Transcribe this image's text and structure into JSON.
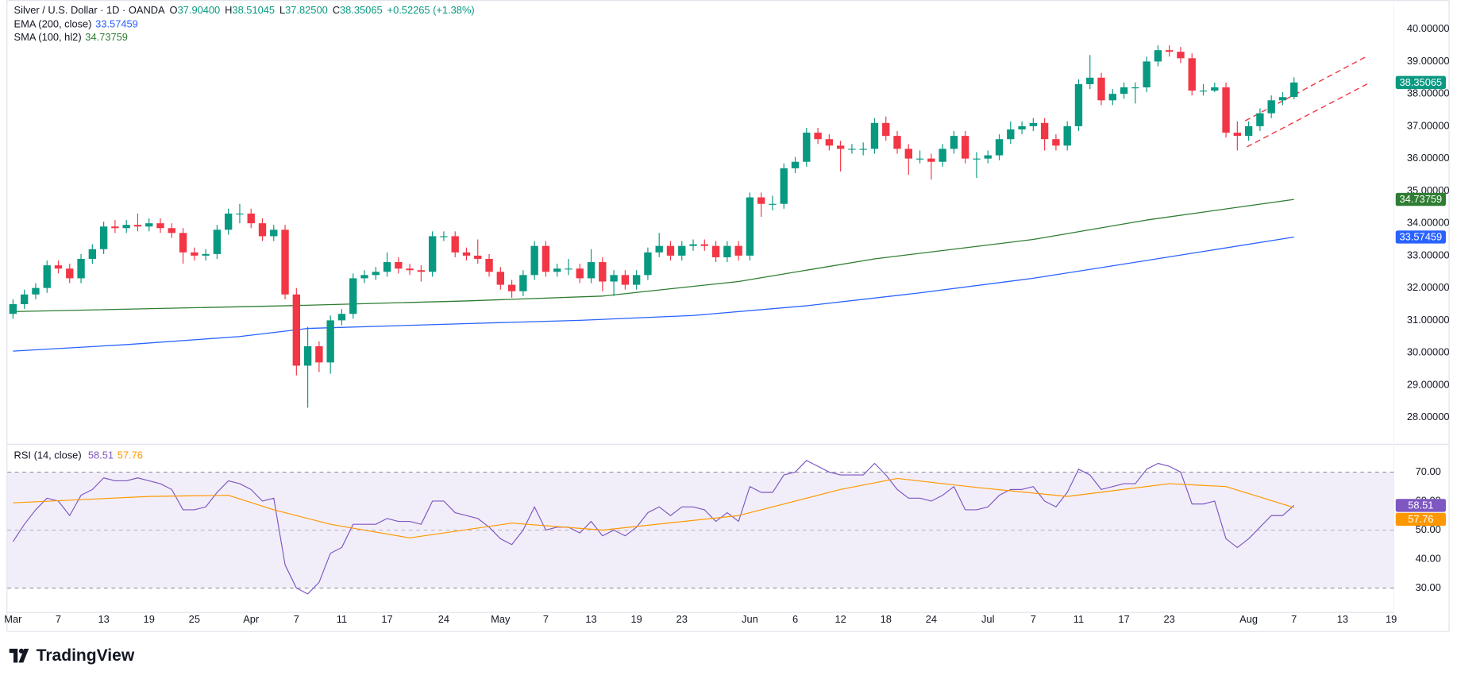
{
  "branding": "TradingView",
  "chart_data": [
    {
      "type": "candlestick",
      "title": "Silver / U.S. Dollar · 1D · OANDA",
      "ohlc_keys": [
        "O",
        "H",
        "L",
        "C"
      ],
      "ohlc_labels": [
        "37.90400",
        "38.51045",
        "37.82500",
        "38.35065"
      ],
      "change": "+0.52265 (+1.38%)",
      "up_color": "#089981",
      "down_color": "#f23645",
      "grid": false,
      "x": [
        "Mar 3",
        "Mar 4",
        "Mar 5",
        "Mar 6",
        "Mar 7",
        "Mar 10",
        "Mar 11",
        "Mar 12",
        "Mar 13",
        "Mar 14",
        "Mar 17",
        "Mar 18",
        "Mar 19",
        "Mar 20",
        "Mar 21",
        "Mar 24",
        "Mar 25",
        "Mar 26",
        "Mar 27",
        "Mar 28",
        "Mar 31",
        "Apr 1",
        "Apr 2",
        "Apr 3",
        "Apr 4",
        "Apr 7",
        "Apr 8",
        "Apr 9",
        "Apr 10",
        "Apr 11",
        "Apr 14",
        "Apr 15",
        "Apr 16",
        "Apr 17",
        "Apr 18",
        "Apr 21",
        "Apr 22",
        "Apr 23",
        "Apr 24",
        "Apr 25",
        "Apr 28",
        "Apr 29",
        "Apr 30",
        "May 1",
        "May 2",
        "May 5",
        "May 6",
        "May 7",
        "May 8",
        "May 9",
        "May 12",
        "May 13",
        "May 14",
        "May 15",
        "May 16",
        "May 19",
        "May 20",
        "May 21",
        "May 22",
        "May 23",
        "May 26",
        "May 27",
        "May 28",
        "May 29",
        "May 30",
        "Jun 2",
        "Jun 3",
        "Jun 4",
        "Jun 5",
        "Jun 6",
        "Jun 9",
        "Jun 10",
        "Jun 11",
        "Jun 12",
        "Jun 13",
        "Jun 16",
        "Jun 17",
        "Jun 18",
        "Jun 19",
        "Jun 20",
        "Jun 23",
        "Jun 24",
        "Jun 25",
        "Jun 26",
        "Jun 27",
        "Jun 30",
        "Jul 1",
        "Jul 2",
        "Jul 3",
        "Jul 4",
        "Jul 7",
        "Jul 8",
        "Jul 9",
        "Jul 10",
        "Jul 11",
        "Jul 14",
        "Jul 15",
        "Jul 16",
        "Jul 17",
        "Jul 18",
        "Jul 21",
        "Jul 22",
        "Jul 23",
        "Jul 24",
        "Jul 25",
        "Jul 28",
        "Jul 29",
        "Jul 30",
        "Jul 31",
        "Aug 1",
        "Aug 4",
        "Aug 5",
        "Aug 6",
        "Aug 7"
      ],
      "open": [
        31.2,
        31.5,
        31.8,
        32.0,
        32.7,
        32.6,
        32.3,
        32.9,
        33.2,
        33.9,
        33.85,
        33.95,
        33.9,
        34.0,
        33.85,
        33.7,
        33.1,
        33.0,
        33.05,
        33.8,
        34.3,
        34.3,
        34.0,
        33.6,
        33.8,
        31.8,
        29.6,
        30.2,
        29.7,
        31.0,
        31.2,
        32.3,
        32.4,
        32.5,
        32.8,
        32.6,
        32.55,
        32.5,
        33.6,
        33.6,
        33.1,
        33.0,
        32.9,
        32.5,
        32.1,
        31.9,
        32.4,
        33.3,
        32.5,
        32.6,
        32.6,
        32.3,
        32.8,
        32.2,
        32.4,
        32.1,
        32.4,
        33.1,
        33.3,
        33.0,
        33.3,
        33.35,
        33.3,
        32.95,
        33.3,
        33.0,
        34.8,
        34.6,
        34.6,
        35.7,
        35.9,
        36.8,
        36.6,
        36.4,
        36.3,
        36.3,
        36.3,
        37.1,
        36.7,
        36.3,
        36.0,
        36.0,
        35.9,
        36.3,
        36.7,
        36.0,
        36.0,
        36.1,
        36.6,
        36.9,
        37.0,
        37.1,
        36.6,
        36.4,
        37.0,
        38.3,
        38.5,
        37.8,
        38.0,
        38.2,
        38.2,
        39.0,
        39.35,
        39.3,
        39.1,
        38.1,
        38.1,
        38.2,
        36.8,
        36.7,
        37.0,
        37.4,
        37.8,
        37.904
      ],
      "high": [
        31.65,
        31.95,
        32.15,
        32.85,
        32.85,
        32.75,
        33.05,
        33.35,
        34.05,
        34.1,
        34.1,
        34.3,
        34.15,
        34.15,
        34.0,
        33.85,
        33.25,
        33.2,
        33.95,
        34.45,
        34.6,
        34.45,
        34.15,
        33.95,
        33.95,
        32.0,
        30.8,
        30.35,
        31.15,
        31.35,
        32.45,
        32.55,
        32.65,
        33.1,
        32.95,
        32.75,
        32.7,
        33.75,
        33.75,
        33.75,
        33.25,
        33.5,
        33.05,
        32.65,
        32.25,
        32.55,
        33.45,
        33.45,
        32.75,
        32.9,
        32.75,
        33.2,
        32.95,
        32.55,
        32.55,
        32.55,
        33.25,
        33.7,
        33.45,
        33.45,
        33.5,
        33.5,
        33.45,
        33.45,
        33.45,
        34.95,
        34.95,
        34.85,
        35.85,
        36.05,
        36.95,
        36.95,
        36.75,
        36.55,
        36.45,
        36.5,
        37.25,
        37.3,
        36.85,
        36.45,
        36.25,
        36.15,
        36.45,
        36.85,
        36.85,
        36.2,
        36.25,
        36.75,
        37.15,
        37.15,
        37.25,
        37.25,
        36.75,
        37.15,
        38.45,
        39.2,
        38.65,
        38.15,
        38.35,
        38.35,
        39.15,
        39.5,
        39.5,
        39.45,
        39.25,
        38.3,
        38.35,
        38.35,
        37.15,
        37.15,
        37.55,
        37.95,
        38.05,
        38.51045
      ],
      "low": [
        31.05,
        31.35,
        31.65,
        31.85,
        32.45,
        32.15,
        32.15,
        32.75,
        33.05,
        33.7,
        33.7,
        33.75,
        33.75,
        33.7,
        33.55,
        32.75,
        32.85,
        32.85,
        32.9,
        33.65,
        34.0,
        33.85,
        33.45,
        33.45,
        31.65,
        29.3,
        28.3,
        29.4,
        29.35,
        30.85,
        31.05,
        32.15,
        32.25,
        32.35,
        32.45,
        32.4,
        32.2,
        32.35,
        33.45,
        32.95,
        32.85,
        32.75,
        32.35,
        31.95,
        31.7,
        31.75,
        32.25,
        32.35,
        32.35,
        32.4,
        32.15,
        32.15,
        31.9,
        31.75,
        31.95,
        31.95,
        32.25,
        32.95,
        32.85,
        32.85,
        33.15,
        33.15,
        32.8,
        32.8,
        32.85,
        32.85,
        34.2,
        34.4,
        34.45,
        35.55,
        35.75,
        36.45,
        36.25,
        35.6,
        36.15,
        36.1,
        36.15,
        36.55,
        36.15,
        35.5,
        35.85,
        35.35,
        35.75,
        36.15,
        35.85,
        35.4,
        35.85,
        35.95,
        36.45,
        36.75,
        36.85,
        36.25,
        36.25,
        36.25,
        36.85,
        38.15,
        37.65,
        37.65,
        37.85,
        37.7,
        38.05,
        38.85,
        39.15,
        38.95,
        37.95,
        37.95,
        38.05,
        36.65,
        36.25,
        36.55,
        36.85,
        37.25,
        37.65,
        37.825
      ],
      "close": [
        31.5,
        31.8,
        32.0,
        32.7,
        32.6,
        32.3,
        32.9,
        33.2,
        33.9,
        33.85,
        33.95,
        33.9,
        34.0,
        33.85,
        33.7,
        33.1,
        33.0,
        33.05,
        33.8,
        34.3,
        34.3,
        34.0,
        33.6,
        33.8,
        31.8,
        29.6,
        30.2,
        29.7,
        31.0,
        31.2,
        32.3,
        32.4,
        32.5,
        32.8,
        32.6,
        32.55,
        32.5,
        33.6,
        33.6,
        33.1,
        33.0,
        32.9,
        32.5,
        32.1,
        31.9,
        32.4,
        33.3,
        32.5,
        32.6,
        32.6,
        32.3,
        32.8,
        32.2,
        32.4,
        32.1,
        32.4,
        33.1,
        33.3,
        33.0,
        33.3,
        33.35,
        33.3,
        32.95,
        33.3,
        33.0,
        34.8,
        34.6,
        34.6,
        35.7,
        35.9,
        36.8,
        36.6,
        36.4,
        36.3,
        36.3,
        36.3,
        37.1,
        36.7,
        36.3,
        36.0,
        36.0,
        35.9,
        36.3,
        36.7,
        36.0,
        36.0,
        36.1,
        36.6,
        36.9,
        37.0,
        37.1,
        36.6,
        36.4,
        37.0,
        38.3,
        38.5,
        37.8,
        38.0,
        38.2,
        38.2,
        39.0,
        39.35,
        39.3,
        39.1,
        38.1,
        38.1,
        38.2,
        36.8,
        36.7,
        37.0,
        37.4,
        37.8,
        37.9,
        38.35065
      ],
      "series": [
        {
          "name": "EMA (200, close)",
          "color": "#2962ff",
          "value_label": "33.57459",
          "x": [
            "Mar 3",
            "Mar 17",
            "Mar 31",
            "Apr 8",
            "Apr 28",
            "May 12",
            "May 26",
            "Jun 9",
            "Jun 23",
            "Jul 7",
            "Jul 21",
            "Aug 7"
          ],
          "values": [
            30.05,
            30.25,
            30.5,
            30.75,
            30.9,
            31.0,
            31.15,
            31.45,
            31.85,
            32.3,
            32.85,
            33.57459
          ]
        },
        {
          "name": "SMA (100, hl2)",
          "color": "#2e7d32",
          "value_label": "34.73759",
          "x": [
            "Mar 3",
            "Apr 4",
            "Apr 28",
            "May 14",
            "May 30",
            "Jun 17",
            "Jul 7",
            "Jul 21",
            "Aug 7"
          ],
          "values": [
            31.27,
            31.45,
            31.6,
            31.75,
            32.2,
            32.9,
            33.5,
            34.1,
            34.73759
          ]
        }
      ],
      "ylim": [
        27.2,
        40.9
      ],
      "yticks": [
        {
          "value": 28,
          "label": "28.00000"
        },
        {
          "value": 29,
          "label": "29.00000"
        },
        {
          "value": 30,
          "label": "30.00000"
        },
        {
          "value": 31,
          "label": "31.00000"
        },
        {
          "value": 32,
          "label": "32.00000"
        },
        {
          "value": 33,
          "label": "33.00000"
        },
        {
          "value": 34,
          "label": "34.00000"
        },
        {
          "value": 35,
          "label": "35.00000"
        },
        {
          "value": 36,
          "label": "36.00000"
        },
        {
          "value": 37,
          "label": "37.00000"
        },
        {
          "value": 38,
          "label": "38.00000"
        },
        {
          "value": 39,
          "label": "39.00000"
        },
        {
          "value": 40,
          "label": "40.00000"
        }
      ],
      "xticks": [
        {
          "value": "Mar 3",
          "label": "Mar"
        },
        {
          "value": "Mar 7",
          "label": "7"
        },
        {
          "value": "Mar 13",
          "label": "13"
        },
        {
          "value": "Mar 19",
          "label": "19"
        },
        {
          "value": "Mar 25",
          "label": "25"
        },
        {
          "value": "Apr 1",
          "label": "Apr"
        },
        {
          "value": "Apr 7",
          "label": "7"
        },
        {
          "value": "Apr 11",
          "label": "11"
        },
        {
          "value": "Apr 17",
          "label": "17"
        },
        {
          "value": "Apr 24",
          "label": "24"
        },
        {
          "value": "May 1",
          "label": "May"
        },
        {
          "value": "May 7",
          "label": "7"
        },
        {
          "value": "May 13",
          "label": "13"
        },
        {
          "value": "May 19",
          "label": "19"
        },
        {
          "value": "May 23",
          "label": "23"
        },
        {
          "value": "Jun 2",
          "label": "Jun"
        },
        {
          "value": "Jun 6",
          "label": "6"
        },
        {
          "value": "Jun 12",
          "label": "12"
        },
        {
          "value": "Jun 18",
          "label": "18"
        },
        {
          "value": "Jun 24",
          "label": "24"
        },
        {
          "value": "Jul 1",
          "label": "Jul"
        },
        {
          "value": "Jul 7",
          "label": "7"
        },
        {
          "value": "Jul 11",
          "label": "11"
        },
        {
          "value": "Jul 17",
          "label": "17"
        },
        {
          "value": "Jul 23",
          "label": "23"
        },
        {
          "value": "Aug 1",
          "label": "Aug"
        },
        {
          "value": "Aug 7",
          "label": "7"
        },
        {
          "value": "Aug 13",
          "label": "13"
        },
        {
          "value": "Aug 19",
          "label": "19"
        }
      ]
    },
    {
      "type": "line",
      "title": "RSI (14, close)",
      "band": [
        30,
        70
      ],
      "band_color": "#7e57c2",
      "midline": 50,
      "series": [
        {
          "color": "#7e57c2",
          "value_label": "58.51",
          "values": [
            46,
            52,
            57,
            61,
            60,
            55,
            62,
            64,
            68,
            67,
            67,
            68,
            67,
            66,
            64,
            57,
            57,
            58,
            63,
            67,
            66,
            64,
            60,
            61,
            38,
            30,
            28,
            32,
            42,
            44,
            52,
            52,
            52,
            54,
            53,
            53,
            52,
            60,
            60,
            56,
            55,
            54,
            51,
            47,
            45,
            50,
            58,
            50,
            51,
            51,
            49,
            53,
            48,
            50,
            48,
            51,
            56,
            58,
            55,
            58,
            58,
            57,
            53,
            56,
            53,
            65,
            63,
            63,
            69,
            70,
            74,
            72,
            70,
            69,
            69,
            69,
            73,
            69,
            64,
            61,
            61,
            60,
            62,
            65,
            57,
            57,
            58,
            62,
            64,
            64,
            65,
            60,
            58,
            63,
            71,
            69,
            64,
            65,
            66,
            66,
            71,
            73,
            72,
            70,
            59,
            59,
            60,
            47,
            44,
            47,
            51,
            55,
            55,
            58.51
          ]
        },
        {
          "color": "#ff9800",
          "value_label": "57.76",
          "x": [
            "Mar 3",
            "Mar 19",
            "Mar 28",
            "Apr 3",
            "Apr 10",
            "Apr 21",
            "May 2",
            "May 14",
            "May 30",
            "Jun 12",
            "Jun 19",
            "Jun 30",
            "Jul 10",
            "Jul 23",
            "Jul 30",
            "Aug 7"
          ],
          "values": [
            59.4,
            61.6,
            62,
            57,
            52,
            47.3,
            52.4,
            50,
            55,
            64,
            67.8,
            64.7,
            61.6,
            66,
            65,
            57.76
          ]
        }
      ],
      "ylim": [
        21.6,
        79.6
      ],
      "yticks": [
        {
          "value": 30,
          "label": "30.00"
        },
        {
          "value": 40,
          "label": "40.00"
        },
        {
          "value": 50,
          "label": "50.00"
        },
        {
          "value": 60,
          "label": "60.00"
        },
        {
          "value": 70,
          "label": "70.00"
        }
      ]
    }
  ]
}
